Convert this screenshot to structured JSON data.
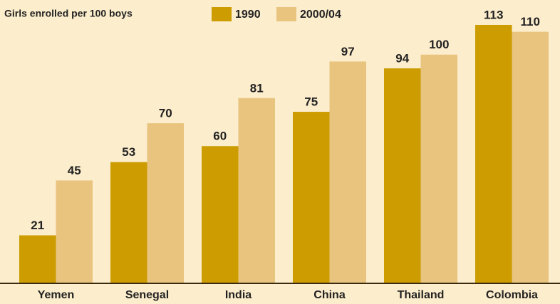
{
  "chart_data": {
    "type": "bar",
    "title": "Girls enrolled per 100 boys",
    "categories": [
      "Yemen",
      "Senegal",
      "India",
      "China",
      "Thailand",
      "Colombia"
    ],
    "series": [
      {
        "name": "1990",
        "color": "#cc9c00",
        "values": [
          21,
          53,
          60,
          75,
          94,
          113
        ]
      },
      {
        "name": "2000/04",
        "color": "#e9c47f",
        "values": [
          45,
          70,
          81,
          97,
          100,
          110
        ]
      }
    ],
    "ylim": [
      0,
      120
    ]
  }
}
